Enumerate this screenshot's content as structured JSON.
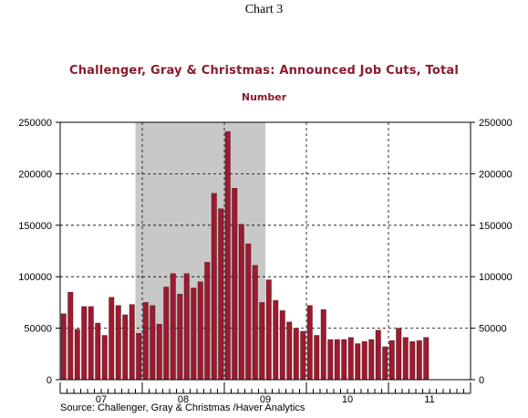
{
  "chart_label": "Chart 3",
  "source": "Source:  Challenger, Gray & Christmas /Haver Analytics",
  "colors": {
    "bar": "#9b1b30",
    "recession": "#c8c8c8",
    "title": "#8b1a2b"
  },
  "chart_data": {
    "type": "bar",
    "title": "Challenger, Gray & Christmas: Announced Job Cuts, Total",
    "subtitle": "Number",
    "ylim": [
      0,
      250000
    ],
    "yticks": [
      0,
      50000,
      100000,
      150000,
      200000,
      250000
    ],
    "ytick_labels": [
      "0",
      "50000",
      "100000",
      "150000",
      "200000",
      "250000"
    ],
    "x_start": "2007-01",
    "year_labels": [
      "07",
      "08",
      "09",
      "10",
      "11"
    ],
    "grid": true,
    "shaded_region": {
      "from": "2007-12",
      "to": "2009-06"
    },
    "series": [
      {
        "values": [
          64000,
          85000,
          49000,
          71000,
          71000,
          55000,
          43000,
          80000,
          72000,
          63000,
          73000,
          45000,
          75000,
          72000,
          54000,
          90000,
          103000,
          83000,
          103000,
          89000,
          95000,
          114000,
          181000,
          166000,
          241000,
          186000,
          151000,
          132000,
          111000,
          75000,
          97000,
          77000,
          67000,
          56000,
          50000,
          47000,
          72000,
          43000,
          68000,
          39000,
          39000,
          39000,
          41000,
          35000,
          37000,
          39000,
          48000,
          32000,
          38000,
          50000,
          41000,
          37000,
          38000,
          41000
        ]
      }
    ]
  }
}
